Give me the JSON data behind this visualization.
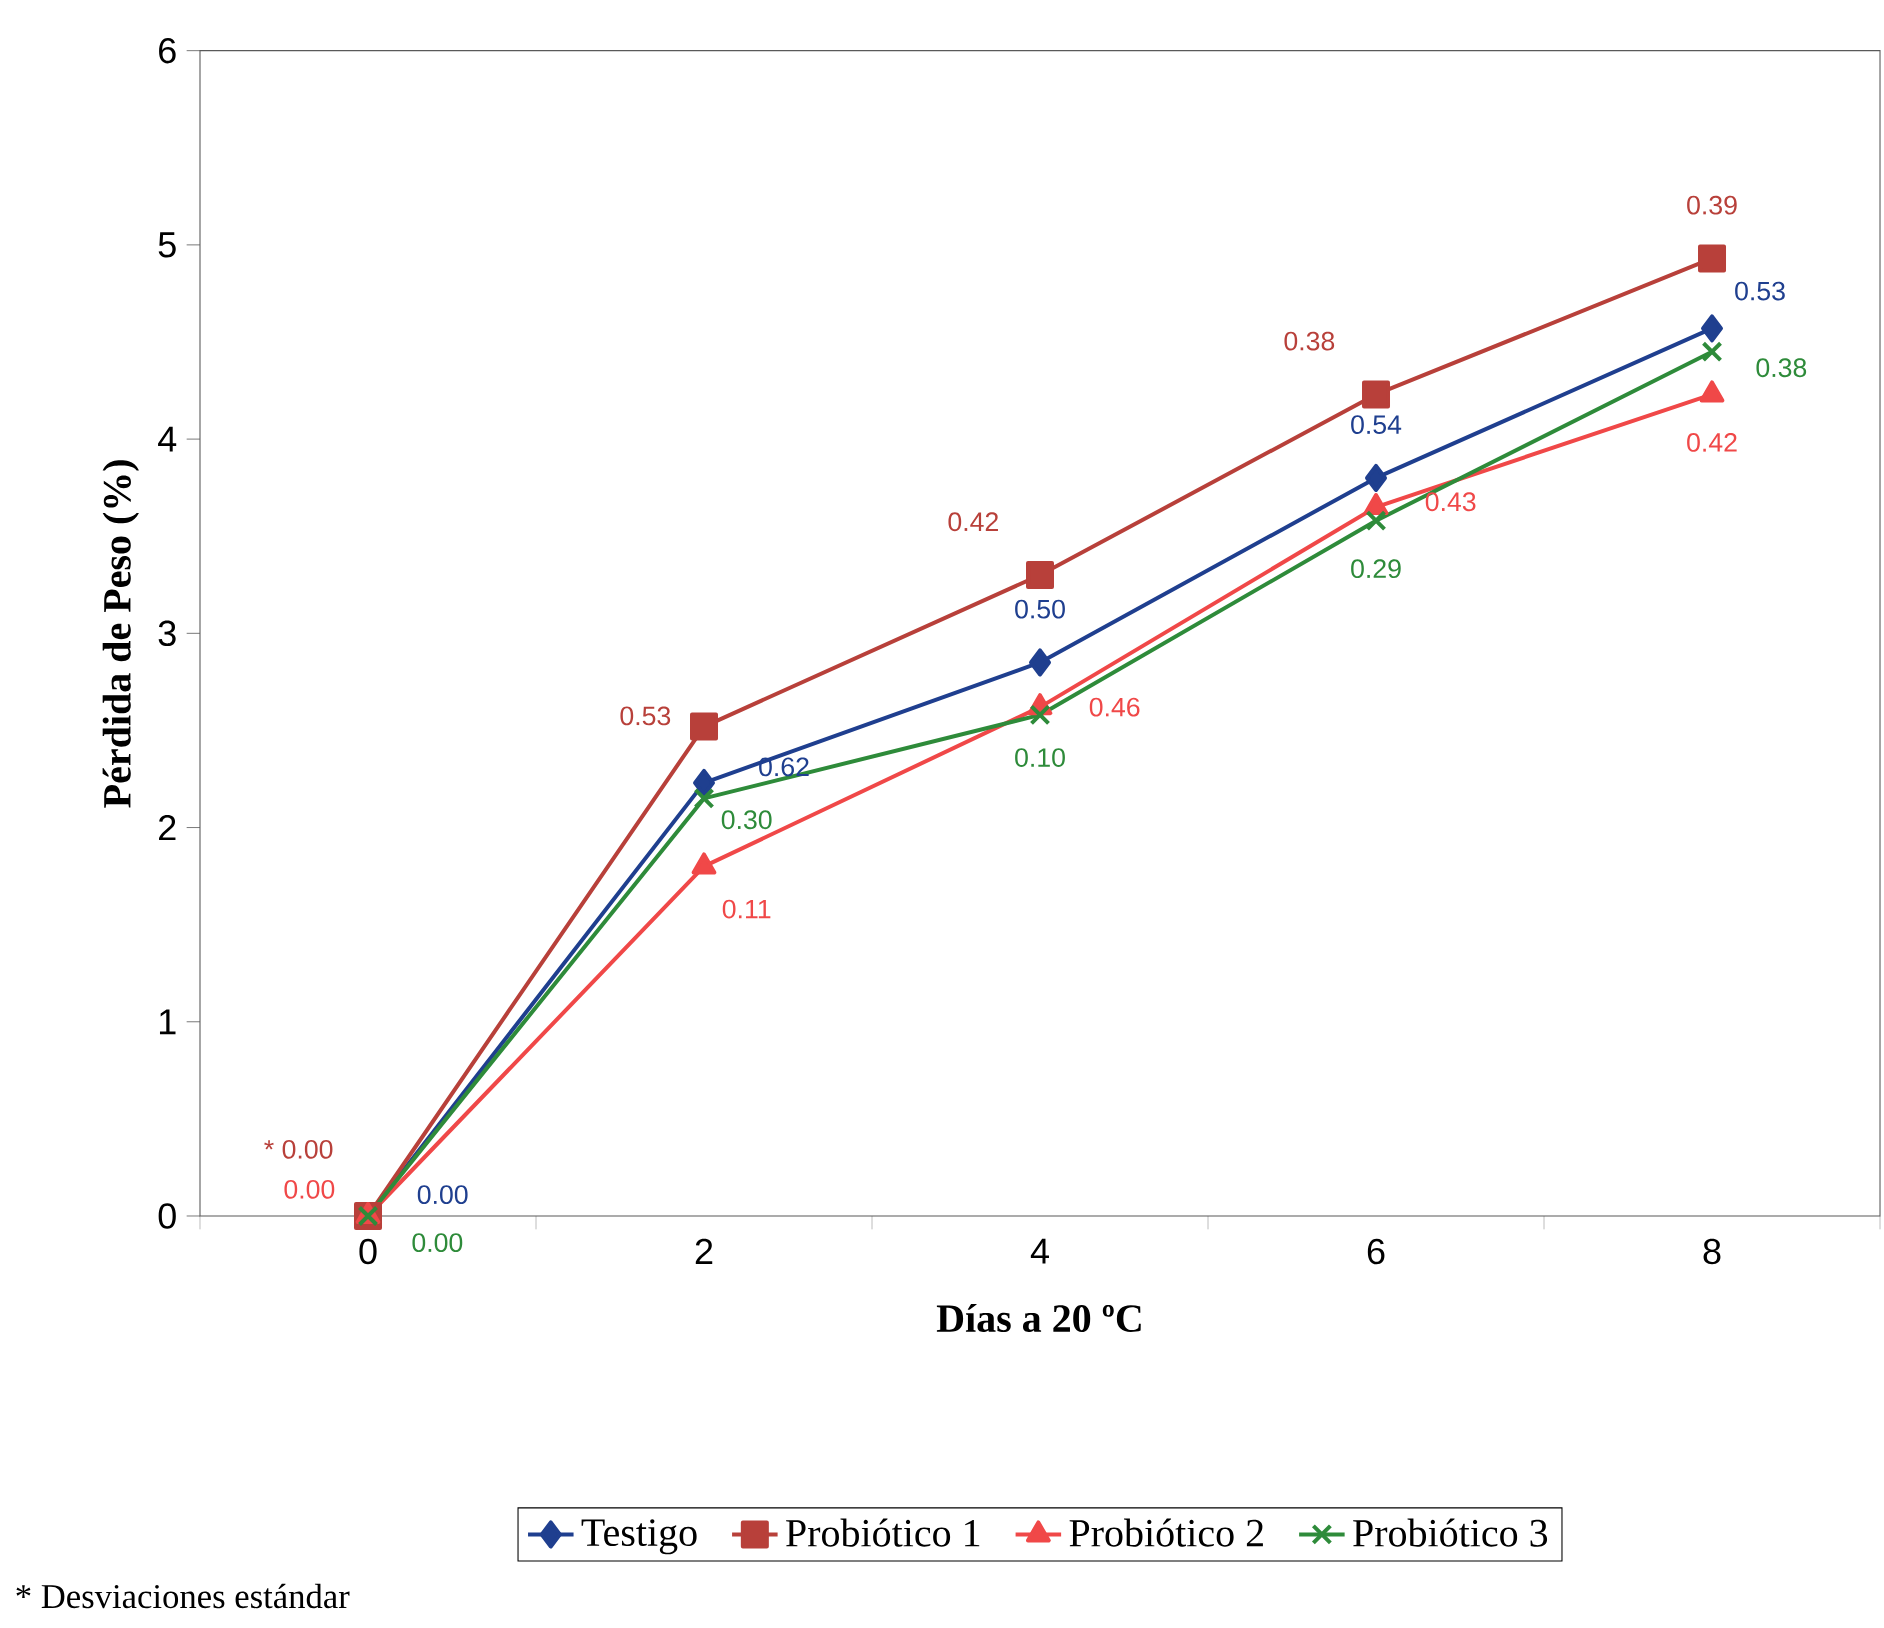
{
  "chart_data": {
    "type": "line",
    "xlabel": "Días a 20 ºC",
    "ylabel": "Pérdida de Peso (%)",
    "categories": [
      "0",
      "2",
      "4",
      "6",
      "8"
    ],
    "series": [
      {
        "name": "Testigo",
        "color": "#1f3f8f",
        "marker": "diamond",
        "values": [
          0,
          2.23,
          2.85,
          3.8,
          4.57
        ]
      },
      {
        "name": "Probiótico 1",
        "color": "#b8403a",
        "marker": "square",
        "values": [
          0,
          2.52,
          3.3,
          4.23,
          4.93
        ]
      },
      {
        "name": "Probiótico 2",
        "color": "#f04848",
        "marker": "triangle",
        "values": [
          0,
          1.8,
          2.62,
          3.65,
          4.23
        ]
      },
      {
        "name": "Probiótico 3",
        "color": "#2e8b3a",
        "marker": "cross",
        "values": [
          0,
          2.15,
          2.58,
          3.58,
          4.45
        ]
      }
    ],
    "ylim": [
      0,
      6
    ],
    "yticks": [
      0,
      1,
      2,
      3,
      4,
      5,
      6
    ],
    "grid": false,
    "legend": "bottom",
    "annotations": [
      {
        "text": "0.00",
        "x": "0",
        "y": 0
      },
      {
        "text": "0.62",
        "x": "2",
        "y": 2.23
      },
      {
        "text": "0.50",
        "x": "4",
        "y": 2.85
      },
      {
        "text": "0.54",
        "x": "6",
        "y": 3.8
      },
      {
        "text": "0.53",
        "x": "8",
        "y": 4.57
      },
      {
        "text": "* 0.00",
        "x": "0",
        "y": 0
      },
      {
        "text": "0.53",
        "x": "2",
        "y": 2.52
      },
      {
        "text": "0.42",
        "x": "4",
        "y": 3.3
      },
      {
        "text": "0.38",
        "x": "6",
        "y": 4.23
      },
      {
        "text": "0.39",
        "x": "8",
        "y": 4.93
      },
      {
        "text": "0.00",
        "x": "0",
        "y": 0
      },
      {
        "text": "0.11",
        "x": "2",
        "y": 1.8
      },
      {
        "text": "0.46",
        "x": "4",
        "y": 2.62
      },
      {
        "text": "0.43",
        "x": "6",
        "y": 3.65
      },
      {
        "text": "0.42",
        "x": "8",
        "y": 4.23
      },
      {
        "text": "0.00",
        "x": "0",
        "y": 0
      },
      {
        "text": "0.30",
        "x": "2",
        "y": 2.15
      },
      {
        "text": "0.10",
        "x": "4",
        "y": 2.58
      },
      {
        "text": "0.29",
        "x": "6",
        "y": 3.58
      },
      {
        "text": "0.38",
        "x": "8",
        "y": 4.45
      },
      "* Desviaciones estándar"
    ]
  }
}
